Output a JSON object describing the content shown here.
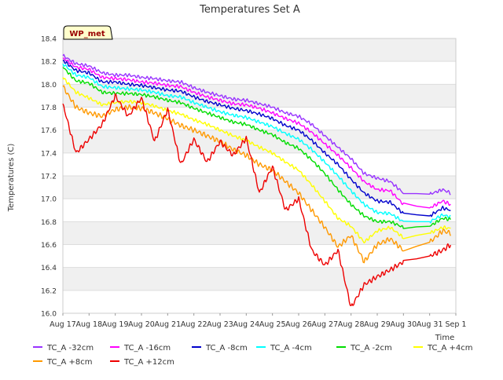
{
  "chart_data": {
    "type": "line",
    "title": "Temperatures Set A",
    "xlabel": "Time",
    "ylabel": "Temperatures (C)",
    "ylim": [
      16.0,
      18.4
    ],
    "yticks": [
      "16.0",
      "16.2",
      "16.4",
      "16.6",
      "16.8",
      "17.0",
      "17.2",
      "17.4",
      "17.6",
      "17.8",
      "18.0",
      "18.2",
      "18.4"
    ],
    "xlim": [
      "2023-08-17",
      "2023-09-01"
    ],
    "xticks": [
      "Aug 17",
      "Aug 18",
      "Aug 19",
      "Aug 20",
      "Aug 21",
      "Aug 22",
      "Aug 23",
      "Aug 24",
      "Aug 25",
      "Aug 26",
      "Aug 27",
      "Aug 28",
      "Aug 29",
      "Aug 30",
      "Aug 31",
      "Sep 1"
    ],
    "site_badge": "WP_met",
    "grid": "horizontal bands",
    "legend_position": "bottom",
    "series": [
      {
        "name": "TC_A -32cm",
        "color": "#9933ff",
        "x": [
          0,
          0.5,
          1,
          1.5,
          2,
          2.5,
          3,
          3.5,
          4,
          4.5,
          5,
          5.5,
          6,
          6.5,
          7,
          7.5,
          8,
          8.5,
          9,
          9.5,
          10,
          10.5,
          11,
          11.5,
          12,
          12.5,
          13,
          14,
          14.5,
          14.8
        ],
        "y": [
          18.25,
          18.18,
          18.16,
          18.1,
          18.08,
          18.08,
          18.06,
          18.05,
          18.03,
          18.02,
          17.97,
          17.93,
          17.9,
          17.87,
          17.86,
          17.83,
          17.8,
          17.75,
          17.72,
          17.65,
          17.55,
          17.45,
          17.35,
          17.22,
          17.18,
          17.15,
          17.05,
          17.04,
          17.08,
          17.05
        ]
      },
      {
        "name": "TC_A -16cm",
        "color": "#ff00ff",
        "x": [
          0,
          0.5,
          1,
          1.5,
          2,
          2.5,
          3,
          3.5,
          4,
          4.5,
          5,
          5.5,
          6,
          6.5,
          7,
          7.5,
          8,
          8.5,
          9,
          9.5,
          10,
          10.5,
          11,
          11.5,
          12,
          12.5,
          13,
          14,
          14.5,
          14.8
        ],
        "y": [
          18.23,
          18.15,
          18.13,
          18.06,
          18.05,
          18.04,
          18.02,
          18.01,
          17.99,
          17.98,
          17.93,
          17.89,
          17.86,
          17.83,
          17.82,
          17.79,
          17.75,
          17.7,
          17.66,
          17.58,
          17.48,
          17.38,
          17.27,
          17.15,
          17.08,
          17.07,
          16.95,
          16.92,
          16.98,
          16.95
        ]
      },
      {
        "name": "TC_A -8cm",
        "color": "#0000cc",
        "x": [
          0,
          0.5,
          1,
          1.5,
          2,
          2.5,
          3,
          3.5,
          4,
          4.5,
          5,
          5.5,
          6,
          6.5,
          7,
          7.5,
          8,
          8.5,
          9,
          9.5,
          10,
          10.5,
          11,
          11.5,
          12,
          12.5,
          13,
          14,
          14.5,
          14.8
        ],
        "y": [
          18.21,
          18.12,
          18.1,
          18.02,
          18.02,
          18.0,
          17.99,
          17.97,
          17.95,
          17.94,
          17.89,
          17.85,
          17.82,
          17.79,
          17.77,
          17.74,
          17.7,
          17.64,
          17.6,
          17.51,
          17.4,
          17.3,
          17.17,
          17.05,
          16.98,
          16.97,
          16.87,
          16.85,
          16.92,
          16.9
        ]
      },
      {
        "name": "TC_A -4cm",
        "color": "#00ffff",
        "x": [
          0,
          0.5,
          1,
          1.5,
          2,
          2.5,
          3,
          3.5,
          4,
          4.5,
          5,
          5.5,
          6,
          6.5,
          7,
          7.5,
          8,
          8.5,
          9,
          9.5,
          10,
          10.5,
          11,
          11.5,
          12,
          12.5,
          13,
          14,
          14.5,
          14.8
        ],
        "y": [
          18.18,
          18.08,
          18.06,
          17.98,
          17.97,
          17.96,
          17.95,
          17.93,
          17.9,
          17.89,
          17.84,
          17.8,
          17.76,
          17.73,
          17.71,
          17.67,
          17.63,
          17.57,
          17.52,
          17.43,
          17.32,
          17.2,
          17.07,
          16.95,
          16.88,
          16.87,
          16.8,
          16.8,
          16.86,
          16.84
        ]
      },
      {
        "name": "TC_A -2cm",
        "color": "#00dd00",
        "x": [
          0,
          0.5,
          1,
          1.5,
          2,
          2.5,
          3,
          3.5,
          4,
          4.5,
          5,
          5.5,
          6,
          6.5,
          7,
          7.5,
          8,
          8.5,
          9,
          9.5,
          10,
          10.5,
          11,
          11.5,
          12,
          12.5,
          13,
          14,
          14.5,
          14.8
        ],
        "y": [
          18.15,
          18.03,
          18.01,
          17.93,
          17.92,
          17.92,
          17.91,
          17.89,
          17.86,
          17.84,
          17.79,
          17.75,
          17.71,
          17.67,
          17.65,
          17.6,
          17.56,
          17.49,
          17.44,
          17.34,
          17.22,
          17.08,
          16.95,
          16.85,
          16.8,
          16.8,
          16.75,
          16.76,
          16.83,
          16.82
        ]
      },
      {
        "name": "TC_A +4cm",
        "color": "#ffff00",
        "x": [
          0,
          0.5,
          1,
          1.5,
          2,
          2.5,
          3,
          3.5,
          4,
          4.5,
          5,
          5.5,
          6,
          6.5,
          7,
          7.5,
          8,
          8.5,
          9,
          9.5,
          10,
          10.5,
          11,
          11.5,
          12,
          12.5,
          13,
          14,
          14.5,
          14.8
        ],
        "y": [
          18.06,
          17.93,
          17.88,
          17.82,
          17.84,
          17.85,
          17.84,
          17.81,
          17.77,
          17.74,
          17.69,
          17.65,
          17.6,
          17.55,
          17.51,
          17.45,
          17.4,
          17.32,
          17.25,
          17.12,
          16.98,
          16.83,
          16.76,
          16.62,
          16.72,
          16.75,
          16.66,
          16.7,
          16.75,
          16.74
        ]
      },
      {
        "name": "TC_A +8cm",
        "color": "#ff9900",
        "x": [
          0,
          0.5,
          1,
          1.5,
          2,
          2.5,
          3,
          3.5,
          4,
          4.5,
          5,
          5.5,
          6,
          6.5,
          7,
          7.5,
          8,
          8.5,
          9,
          9.5,
          10,
          10.5,
          11,
          11.5,
          12,
          12.5,
          13,
          14,
          14.5,
          14.8
        ],
        "y": [
          17.98,
          17.8,
          17.75,
          17.72,
          17.78,
          17.8,
          17.79,
          17.75,
          17.7,
          17.64,
          17.6,
          17.55,
          17.5,
          17.43,
          17.38,
          17.3,
          17.25,
          17.15,
          17.05,
          16.9,
          16.75,
          16.58,
          16.68,
          16.45,
          16.6,
          16.65,
          16.55,
          16.62,
          16.72,
          16.7
        ]
      },
      {
        "name": "TC_A +12cm",
        "color": "#ee0000",
        "x": [
          0,
          0.5,
          1,
          1.5,
          2,
          2.5,
          3,
          3.5,
          4,
          4.5,
          5,
          5.5,
          6,
          6.5,
          7,
          7.5,
          8,
          8.5,
          9,
          9.5,
          10,
          10.5,
          11,
          11.5,
          12,
          12.5,
          13,
          14,
          14.5,
          14.8
        ],
        "y": [
          17.83,
          17.4,
          17.52,
          17.65,
          17.9,
          17.72,
          17.88,
          17.5,
          17.78,
          17.3,
          17.52,
          17.32,
          17.5,
          17.38,
          17.53,
          17.05,
          17.28,
          16.9,
          17.0,
          16.55,
          16.42,
          16.55,
          16.05,
          16.25,
          16.32,
          16.38,
          16.45,
          16.5,
          16.55,
          16.6
        ]
      }
    ]
  }
}
